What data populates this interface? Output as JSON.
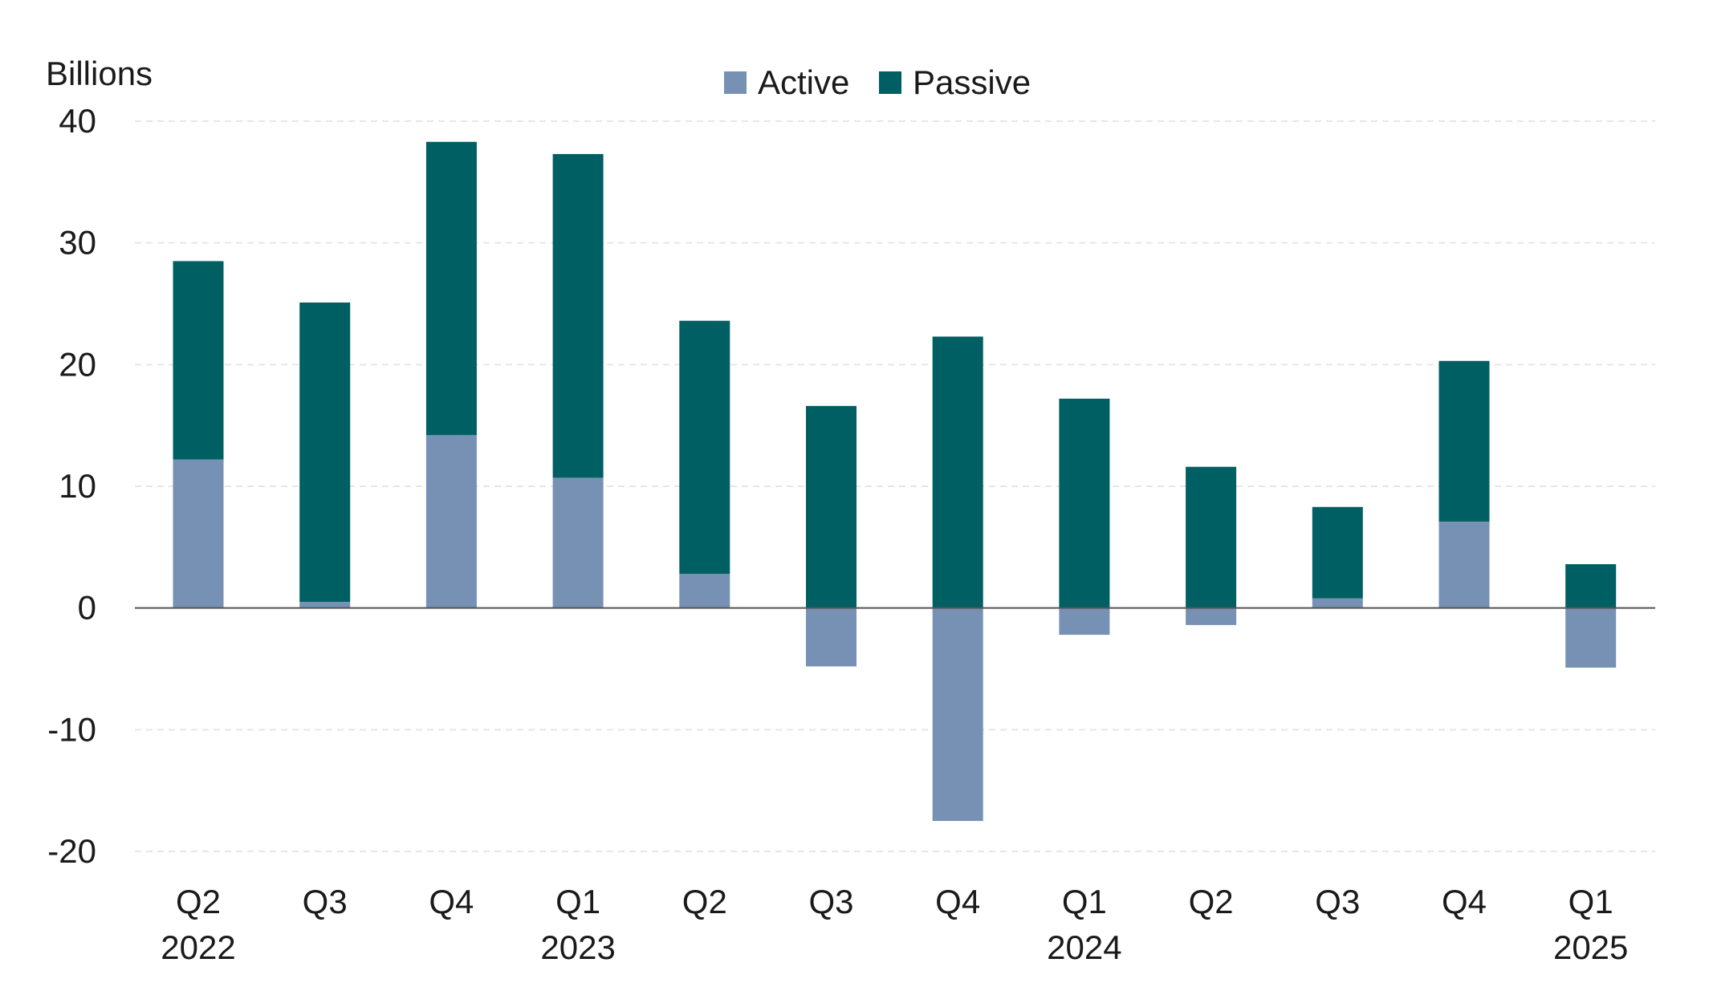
{
  "chart_data": {
    "type": "bar",
    "stacked": true,
    "unit_label": "Billions",
    "categories": [
      [
        "Q2",
        "2022"
      ],
      [
        "Q3",
        ""
      ],
      [
        "Q4",
        ""
      ],
      [
        "Q1",
        "2023"
      ],
      [
        "Q2",
        ""
      ],
      [
        "Q3",
        ""
      ],
      [
        "Q4",
        ""
      ],
      [
        "Q1",
        "2024"
      ],
      [
        "Q2",
        ""
      ],
      [
        "Q3",
        ""
      ],
      [
        "Q4",
        ""
      ],
      [
        "Q1",
        "2025"
      ]
    ],
    "series": [
      {
        "name": "Active",
        "color": "#7691b4",
        "values": [
          12.2,
          0.5,
          14.2,
          10.7,
          2.8,
          -4.8,
          -17.5,
          -2.2,
          -1.4,
          0.8,
          7.1,
          -4.9
        ]
      },
      {
        "name": "Passive",
        "color": "#005f63",
        "values": [
          16.3,
          24.6,
          24.1,
          26.6,
          20.8,
          16.6,
          22.3,
          17.2,
          11.6,
          7.5,
          13.2,
          3.6
        ]
      }
    ],
    "ylim": [
      -20,
      40
    ],
    "yticks": [
      40,
      30,
      20,
      10,
      0,
      -10,
      -20
    ],
    "grid": true,
    "legend_position": "top-center"
  }
}
